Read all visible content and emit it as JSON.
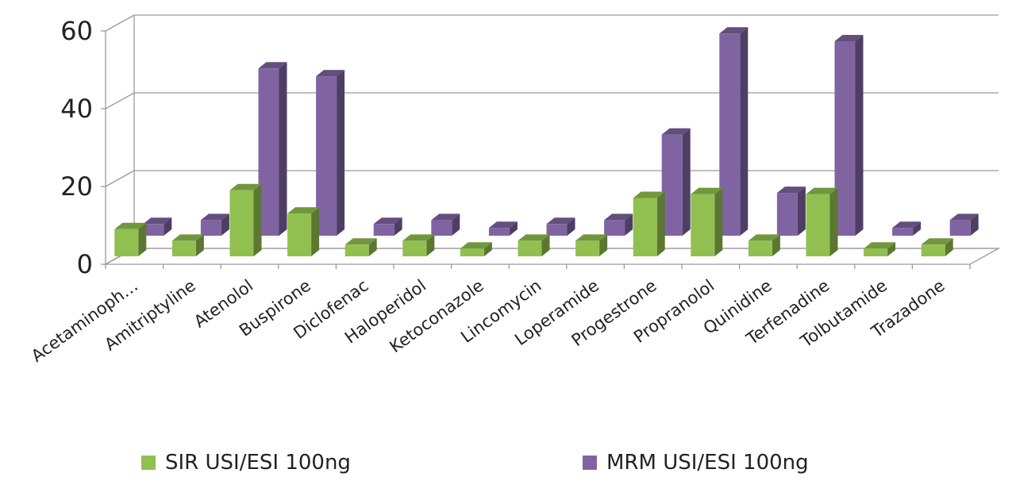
{
  "chart_data": {
    "type": "bar",
    "style": "3d-column",
    "title": "",
    "xlabel": "",
    "ylabel": "",
    "ylim": [
      0,
      60
    ],
    "yticks": [
      "0",
      "20",
      "40",
      "60"
    ],
    "grid": true,
    "legend_position": "bottom",
    "categories": [
      "Acetaminoph…",
      "Amitriptyline",
      "Atenolol",
      "Buspirone",
      "Diclofenac",
      "Haloperidol",
      "Ketoconazole",
      "Lincomycin",
      "Loperamide",
      "Progestrone",
      "Propranolol",
      "Quinidine",
      "Terfenadine",
      "Tolbutamide",
      "Trazadone"
    ],
    "series": [
      {
        "name": "SIR USI/ESI 100ng",
        "color": "#92C050",
        "values": [
          7,
          4,
          17,
          11,
          3,
          4,
          2,
          4,
          4,
          15,
          16,
          4,
          16,
          2,
          3
        ]
      },
      {
        "name": "MRM USI/ESI 100ng",
        "color": "#8064A2",
        "values": [
          3,
          4,
          43,
          41,
          3,
          4,
          2,
          3,
          4,
          26,
          52,
          11,
          50,
          2,
          4
        ]
      }
    ]
  }
}
